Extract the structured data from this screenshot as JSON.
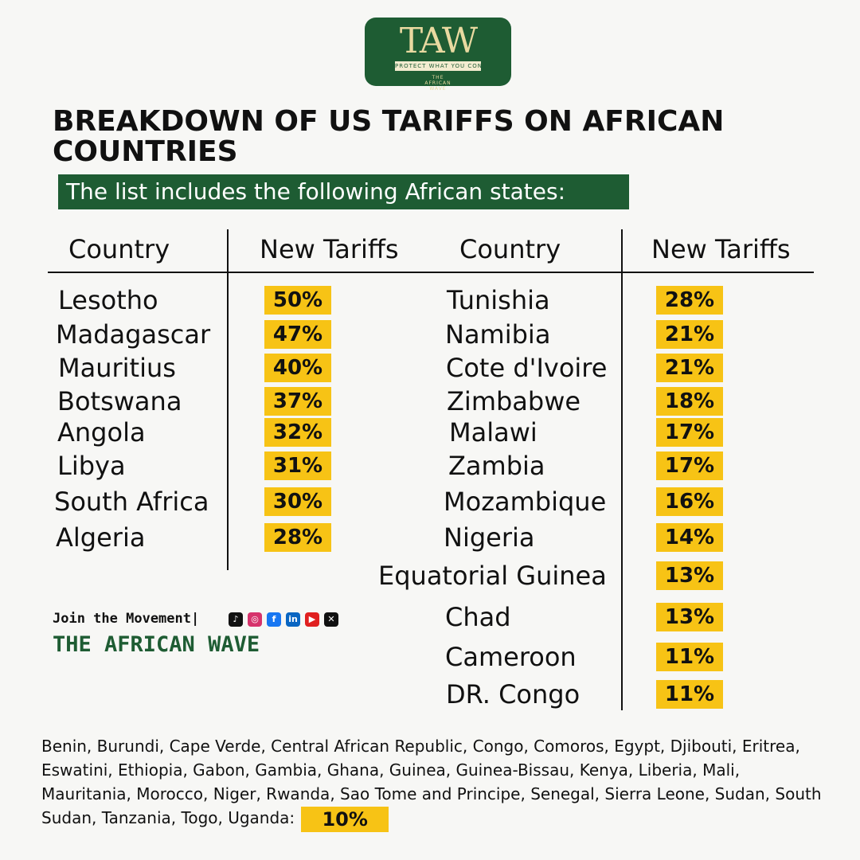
{
  "logo": {
    "mark": "TAW",
    "tagline": "PROTECT WHAT YOU CONSUME",
    "sub_line1": "THE",
    "sub_line2": "AFRICAN",
    "sub_line3": "WAVE"
  },
  "title": "BREAKDOWN OF US TARIFFS ON AFRICAN COUNTRIES",
  "subtitle": "The list includes the following African states:",
  "table": {
    "headers": [
      "Country",
      "New Tariffs",
      "Country",
      "New Tariffs"
    ],
    "left": [
      {
        "country": "Lesotho",
        "tariff": "50%"
      },
      {
        "country": "Madagascar",
        "tariff": "47%"
      },
      {
        "country": "Mauritius",
        "tariff": "40%"
      },
      {
        "country": "Botswana",
        "tariff": "37%"
      },
      {
        "country": "Angola",
        "tariff": "32%"
      },
      {
        "country": "Libya",
        "tariff": "31%"
      },
      {
        "country": "South Africa",
        "tariff": "30%"
      },
      {
        "country": "Algeria",
        "tariff": "28%"
      }
    ],
    "right": [
      {
        "country": "Tunishia",
        "tariff": "28%"
      },
      {
        "country": "Namibia",
        "tariff": "21%"
      },
      {
        "country": "Cote d'Ivoire",
        "tariff": "21%"
      },
      {
        "country": "Zimbabwe",
        "tariff": "18%"
      },
      {
        "country": "Malawi",
        "tariff": "17%"
      },
      {
        "country": "Zambia",
        "tariff": "17%"
      },
      {
        "country": "Mozambique",
        "tariff": "16%"
      },
      {
        "country": "Nigeria",
        "tariff": "14%"
      },
      {
        "country": "Equatorial Guinea",
        "tariff": "13%"
      },
      {
        "country": "Chad",
        "tariff": "13%"
      },
      {
        "country": "Cameroon",
        "tariff": "11%"
      },
      {
        "country": "DR. Congo",
        "tariff": "11%"
      }
    ]
  },
  "movement": {
    "join_text": "Join the Movement",
    "separator": "|",
    "brand": "THE AFRICAN WAVE",
    "socials": [
      {
        "icon": "tiktok-icon",
        "glyph": "♪",
        "color": "#111111"
      },
      {
        "icon": "instagram-icon",
        "glyph": "◎",
        "color": "#d6336c"
      },
      {
        "icon": "facebook-icon",
        "glyph": "f",
        "color": "#1877f2"
      },
      {
        "icon": "linkedin-icon",
        "glyph": "in",
        "color": "#0a66c2"
      },
      {
        "icon": "youtube-icon",
        "glyph": "▶",
        "color": "#e02020"
      },
      {
        "icon": "x-icon",
        "glyph": "✕",
        "color": "#111111"
      }
    ]
  },
  "footer": {
    "countries": "Benin, Burundi, Cape Verde, Central African Republic, Congo, Comoros, Egypt, Djibouti, Eritrea, Eswatini, Ethiopia, Gabon, Gambia, Ghana, Guinea, Guinea-Bissau, Kenya, Liberia, Mali, Mauritania, Morocco, Niger, Rwanda, Sao Tome and Principe, Senegal, Sierra Leone, Sudan, South Sudan, Tanzania, Togo, Uganda:",
    "tariff": "10%"
  },
  "colors": {
    "brand_green": "#1e5c33",
    "badge_yellow": "#f7c315",
    "background": "#f7f7f5"
  }
}
